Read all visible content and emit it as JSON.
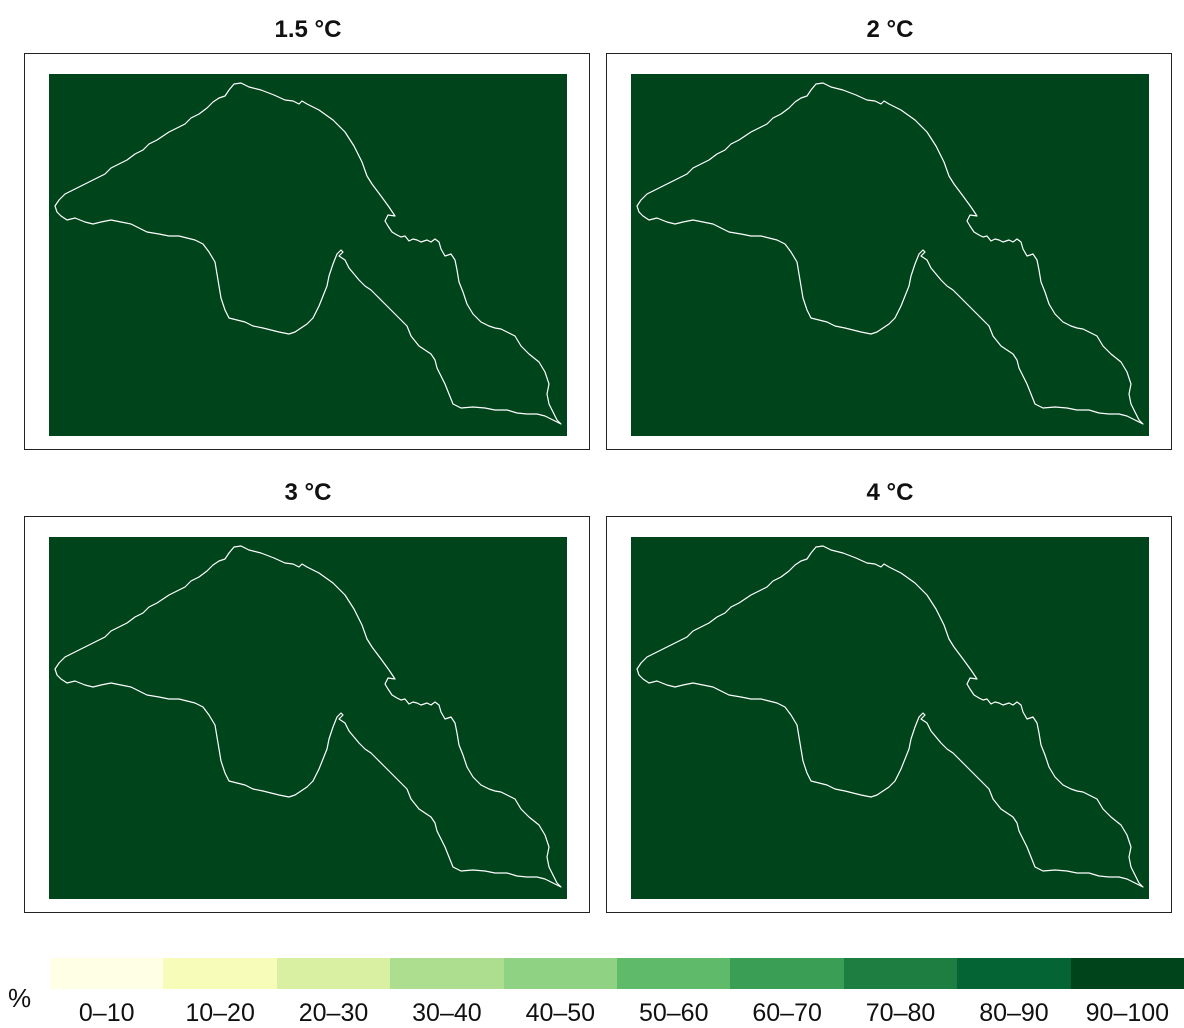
{
  "panels": [
    {
      "title": "1.5 °C",
      "fill_color": "#00441b"
    },
    {
      "title": "2 °C",
      "fill_color": "#00441b"
    },
    {
      "title": "3 °C",
      "fill_color": "#00441b"
    },
    {
      "title": "4 °C",
      "fill_color": "#00441b"
    }
  ],
  "legend": {
    "unit": "%",
    "classes": [
      {
        "label": "0–10",
        "color": "#ffffe5"
      },
      {
        "label": "10–20",
        "color": "#f7fcb9"
      },
      {
        "label": "20–30",
        "color": "#d9f0a3"
      },
      {
        "label": "30–40",
        "color": "#addd8e"
      },
      {
        "label": "40–50",
        "color": "#8fd283"
      },
      {
        "label": "50–60",
        "color": "#5fba6a"
      },
      {
        "label": "60–70",
        "color": "#3b9e55"
      },
      {
        "label": "70–80",
        "color": "#1e7d40"
      },
      {
        "label": "80–90",
        "color": "#056434"
      },
      {
        "label": "90–100",
        "color": "#00441b"
      }
    ]
  },
  "map_style": {
    "background": "#ffffff",
    "outline_color": "#ffffff"
  }
}
